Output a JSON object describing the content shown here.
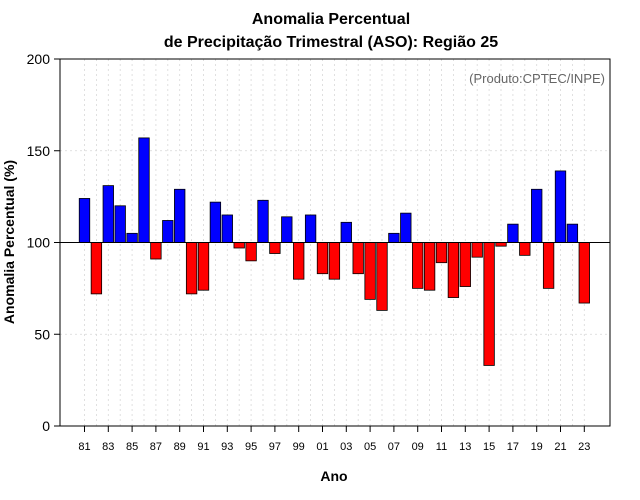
{
  "chart_data": {
    "type": "bar",
    "title_line1": "Anomalia Percentual",
    "title_line2": "de Precipitação Trimestral (ASO): Região 25",
    "source": "(Produto:CPTEC/INPE)",
    "xlabel": "Ano",
    "ylabel": "Anomalia Percentual (%)",
    "ylim": [
      0,
      200
    ],
    "yticks": [
      0,
      50,
      100,
      150,
      200
    ],
    "baseline": 100,
    "grid": true,
    "colors": {
      "above": "#0000ff",
      "below": "#ff0000",
      "outline": "#000000"
    },
    "tick_labels": [
      "81",
      "83",
      "85",
      "87",
      "89",
      "91",
      "93",
      "95",
      "97",
      "99",
      "01",
      "03",
      "05",
      "07",
      "09",
      "11",
      "13",
      "15",
      "17",
      "19",
      "21",
      "23"
    ],
    "categories": [
      "1981",
      "1982",
      "1983",
      "1984",
      "1985",
      "1986",
      "1987",
      "1988",
      "1989",
      "1990",
      "1991",
      "1992",
      "1993",
      "1994",
      "1995",
      "1996",
      "1997",
      "1998",
      "1999",
      "2000",
      "2001",
      "2002",
      "2003",
      "2004",
      "2005",
      "2006",
      "2007",
      "2008",
      "2009",
      "2010",
      "2011",
      "2012",
      "2013",
      "2014",
      "2015",
      "2016",
      "2017",
      "2018",
      "2019",
      "2020",
      "2021",
      "2022",
      "2023"
    ],
    "values": [
      124,
      72,
      131,
      120,
      105,
      157,
      91,
      112,
      129,
      72,
      74,
      122,
      115,
      97,
      90,
      123,
      94,
      114,
      80,
      115,
      83,
      80,
      111,
      83,
      69,
      63,
      105,
      116,
      75,
      74,
      89,
      70,
      76,
      92,
      33,
      98,
      110,
      93,
      129,
      75,
      139,
      110,
      67
    ]
  }
}
